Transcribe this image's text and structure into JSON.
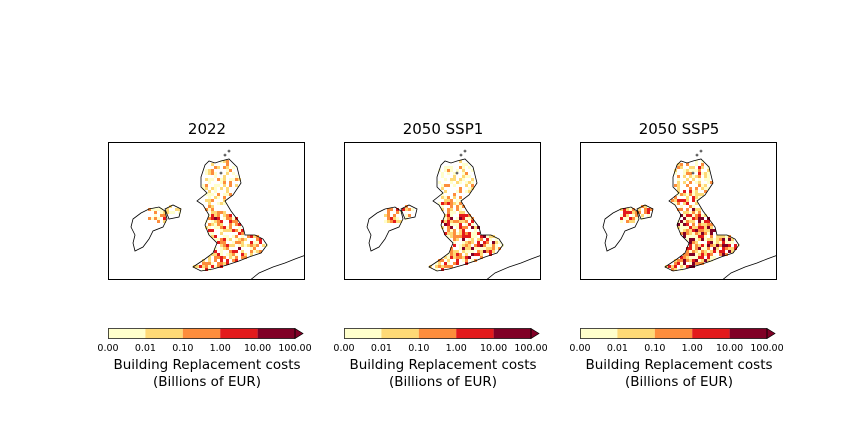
{
  "panels": [
    {
      "id": "p2022",
      "title": "2022",
      "intensity": 0.28
    },
    {
      "id": "pssp1",
      "title": "2050 SSP1",
      "intensity": 0.36
    },
    {
      "id": "pssp5",
      "title": "2050 SSP5",
      "intensity": 0.58
    }
  ],
  "colorbar": {
    "ticks": [
      "0.00",
      "0.01",
      "0.10",
      "1.00",
      "10.00",
      "100.00"
    ],
    "colors": [
      "#ffffcc",
      "#fed976",
      "#fd8d3c",
      "#e31a1c",
      "#800026"
    ],
    "label_line1": "Building Replacement costs",
    "label_line2": "(Billions of EUR)",
    "extend": "max"
  }
}
